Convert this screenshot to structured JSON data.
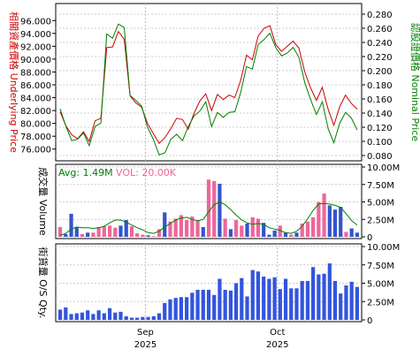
{
  "chart_data": [
    {
      "type": "line",
      "panel": "price",
      "left_axis_label": "相關資產價格 Underlying Price",
      "right_axis_label": "認股證價格 Nominal Price",
      "left_ticks": [
        "96.000",
        "94.000",
        "92.000",
        "90.000",
        "88.000",
        "86.000",
        "84.000",
        "82.000",
        "80.000",
        "78.000",
        "76.000"
      ],
      "right_ticks": [
        "0.280",
        "0.260",
        "0.240",
        "0.220",
        "0.200",
        "0.180",
        "0.160",
        "0.140",
        "0.120",
        "0.100",
        "0.080"
      ],
      "ylim_left": [
        75,
        97
      ],
      "ylim_right": [
        0.08,
        0.28
      ],
      "grid": true,
      "series": [
        {
          "color": "#cc0000",
          "values": [
            81.8,
            79.6,
            78.2,
            77.6,
            78.7,
            77.2,
            80.4,
            80.8,
            91.8,
            91.9,
            94.3,
            93.1,
            84.3,
            83.2,
            82.5,
            80.0,
            78.4,
            76.9,
            77.8,
            79.2,
            80.8,
            80.6,
            79.1,
            81.6,
            83.5,
            84.6,
            82.0,
            84.5,
            83.7,
            84.4,
            84.0,
            86.7,
            90.6,
            89.9,
            93.6,
            94.8,
            95.2,
            92.3,
            91.2,
            92.0,
            92.8,
            91.7,
            88.0,
            85.5,
            83.6,
            85.6,
            82.2,
            79.7,
            82.6,
            84.4,
            83.1,
            82.2
          ]
        },
        {
          "color": "#008000",
          "values": [
            0.146,
            0.121,
            0.101,
            0.103,
            0.112,
            0.094,
            0.121,
            0.126,
            0.252,
            0.246,
            0.266,
            0.261,
            0.165,
            0.158,
            0.15,
            0.12,
            0.103,
            0.081,
            0.084,
            0.103,
            0.11,
            0.101,
            0.121,
            0.136,
            0.143,
            0.156,
            0.121,
            0.141,
            0.134,
            0.141,
            0.142,
            0.169,
            0.206,
            0.202,
            0.237,
            0.244,
            0.253,
            0.233,
            0.221,
            0.225,
            0.233,
            0.219,
            0.183,
            0.159,
            0.138,
            0.156,
            0.118,
            0.098,
            0.126,
            0.141,
            0.133,
            0.116
          ]
        }
      ]
    },
    {
      "type": "bar",
      "panel": "volume",
      "axis_label": "成交量 Volume",
      "legend": {
        "avg": "Avg: 1.49M",
        "vol": "VOL: 20.00K"
      },
      "ticks": [
        "10.00M",
        "7.50M",
        "5.00M",
        "2.50M",
        "0"
      ],
      "ylim": [
        0,
        10.0
      ],
      "unit": "M",
      "bar_colors": {
        "up": "#ee6699",
        "down": "#3355cc"
      },
      "values": [
        1.4,
        0.4,
        3.3,
        1.4,
        0.4,
        0.6,
        0.6,
        1.4,
        1.5,
        1.6,
        1.3,
        1.6,
        2.4,
        1.5,
        0.5,
        0.3,
        0.2,
        0.1,
        1.1,
        3.5,
        2.2,
        2.6,
        3.1,
        2.4,
        2.9,
        2.4,
        1.4,
        8.2,
        8.0,
        7.6,
        2.6,
        1.1,
        2.4,
        1.6,
        1.9,
        2.8,
        2.6,
        2.0,
        0.3,
        0.9,
        1.6,
        0.6,
        0.3,
        0.6,
        1.9,
        2.2,
        2.8,
        5.0,
        6.2,
        4.5,
        3.9,
        4.3,
        0.7,
        1.2,
        0.6
      ],
      "colors": [
        "up",
        "down",
        "down",
        "down",
        "up",
        "down",
        "up",
        "up",
        "up",
        "up",
        "up",
        "down",
        "down",
        "up",
        "up",
        "up",
        "down",
        "up",
        "up",
        "down",
        "up",
        "up",
        "up",
        "up",
        "up",
        "up",
        "down",
        "up",
        "up",
        "down",
        "up",
        "down",
        "up",
        "up",
        "down",
        "up",
        "up",
        "down",
        "down",
        "down",
        "up",
        "down",
        "up",
        "down",
        "up",
        "up",
        "up",
        "up",
        "up",
        "down",
        "down",
        "down",
        "up",
        "down",
        "down"
      ],
      "avg_line": [
        0.2,
        0.5,
        1.1,
        1.4,
        1.3,
        1.3,
        1.2,
        1.3,
        1.5,
        2.0,
        2.4,
        2.4,
        2.1,
        1.7,
        1.3,
        1.0,
        0.6,
        0.5,
        0.8,
        1.4,
        1.9,
        2.4,
        2.7,
        2.8,
        2.5,
        2.3,
        2.5,
        3.6,
        4.6,
        5.0,
        4.6,
        3.9,
        3.1,
        2.4,
        2.0,
        1.8,
        1.9,
        1.8,
        1.3,
        1.1,
        0.9,
        0.6,
        0.5,
        0.8,
        1.5,
        2.6,
        3.8,
        4.7,
        4.8,
        4.7,
        4.5,
        4.2,
        3.3,
        2.3,
        1.7
      ]
    },
    {
      "type": "bar",
      "panel": "outstanding",
      "axis_label": "街貨量 O/S Qty.",
      "ticks": [
        "10.00M",
        "7.50M",
        "5.00M",
        "2.50M",
        "0"
      ],
      "ylim": [
        0,
        10.0
      ],
      "unit": "M",
      "color": "#3355dd",
      "values": [
        1.4,
        1.7,
        0.8,
        0.9,
        1.0,
        1.3,
        0.8,
        1.3,
        0.9,
        1.6,
        1.0,
        1.1,
        0.5,
        0.3,
        0.3,
        0.4,
        0.4,
        0.5,
        0.9,
        2.3,
        2.8,
        3.0,
        3.1,
        3.1,
        3.7,
        4.1,
        4.1,
        4.1,
        3.4,
        5.6,
        4.1,
        4.0,
        5.0,
        5.7,
        3.2,
        6.8,
        6.6,
        5.9,
        5.6,
        5.8,
        4.2,
        5.6,
        4.3,
        4.3,
        5.3,
        5.3,
        7.2,
        6.2,
        6.3,
        7.7,
        5.3,
        3.6,
        4.7,
        5.2,
        4.5
      ],
      "x_labels": [
        {
          "month": "Sep",
          "year": "2025",
          "index": 16
        },
        {
          "month": "Oct",
          "year": "2025",
          "index": 40
        }
      ]
    }
  ]
}
